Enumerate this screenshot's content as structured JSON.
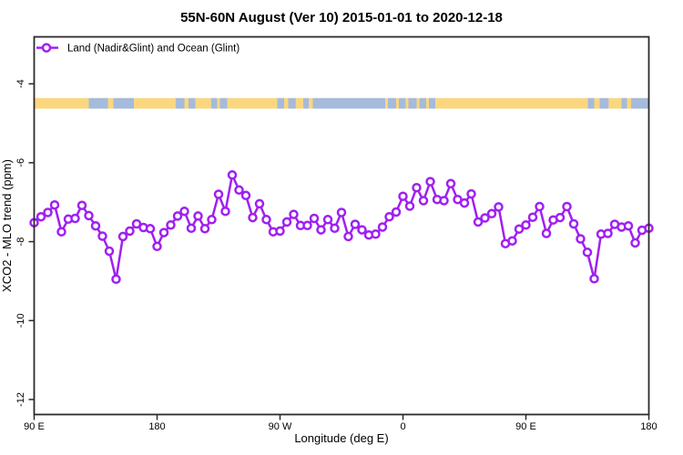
{
  "window": {
    "title": "55N-60N August (Ver 10)   2015-01-01 to 2020-12-18"
  },
  "legend": {
    "label": "Land (Nadir&Glint) and Ocean (Glint)"
  },
  "colors": {
    "series_purple": "#A020F0",
    "marker_fill": "#FFFFFF",
    "land_yellow": "#FAD77F",
    "ocean_blue": "#A6BADB",
    "axis_dark": "#2A2A2A"
  },
  "chart_data": {
    "type": "line",
    "title": "55N-60N August (Ver 10)   2015-01-01 to 2020-12-18",
    "xlabel": "Longitude (deg E)",
    "ylabel": "XCO2 - MLO trend (ppm)",
    "xlim": [
      90,
      540
    ],
    "ylim": [
      -12.38,
      -2.81
    ],
    "grid": false,
    "legend_position": "top-left-inside",
    "x_ticks": [
      {
        "value": 90,
        "label": "90 E"
      },
      {
        "value": 180,
        "label": "180"
      },
      {
        "value": 270,
        "label": "90 W"
      },
      {
        "value": 360,
        "label": "0"
      },
      {
        "value": 450,
        "label": "90 E"
      },
      {
        "value": 540,
        "label": "180"
      }
    ],
    "y_ticks": [
      {
        "value": -4,
        "label": "-4"
      },
      {
        "value": -6,
        "label": "-6"
      },
      {
        "value": -8,
        "label": "-8"
      },
      {
        "value": -10,
        "label": "-10"
      },
      {
        "value": -12,
        "label": "-12"
      }
    ],
    "series": [
      {
        "name": "Land (Nadir&Glint) and Ocean (Glint)",
        "color": "#A020F0",
        "marker": "open-circle",
        "x": [
          90,
          95,
          100,
          105,
          110,
          115,
          120,
          125,
          130,
          135,
          140,
          145,
          150,
          155,
          160,
          165,
          170,
          175,
          180,
          185,
          190,
          195,
          200,
          205,
          210,
          215,
          220,
          225,
          230,
          235,
          240,
          245,
          250,
          255,
          260,
          265,
          270,
          275,
          280,
          285,
          290,
          295,
          300,
          305,
          310,
          315,
          320,
          325,
          330,
          335,
          340,
          345,
          350,
          355,
          360,
          365,
          370,
          375,
          380,
          385,
          390,
          395,
          400,
          405,
          410,
          415,
          420,
          425,
          430,
          435,
          440,
          445,
          450,
          455,
          460,
          465,
          470,
          475,
          480,
          485,
          490,
          495,
          500,
          505,
          510,
          515,
          520,
          525,
          530,
          535,
          540
        ],
        "values": [
          -7.52,
          -7.37,
          -7.26,
          -7.07,
          -7.75,
          -7.43,
          -7.41,
          -7.08,
          -7.34,
          -7.6,
          -7.86,
          -8.24,
          -8.95,
          -7.87,
          -7.73,
          -7.55,
          -7.64,
          -7.67,
          -8.12,
          -7.77,
          -7.58,
          -7.35,
          -7.23,
          -7.66,
          -7.35,
          -7.67,
          -7.44,
          -6.8,
          -7.23,
          -6.31,
          -6.69,
          -6.83,
          -7.39,
          -7.04,
          -7.44,
          -7.75,
          -7.73,
          -7.5,
          -7.31,
          -7.59,
          -7.59,
          -7.41,
          -7.7,
          -7.44,
          -7.66,
          -7.26,
          -7.87,
          -7.56,
          -7.7,
          -7.83,
          -7.81,
          -7.63,
          -7.37,
          -7.25,
          -6.85,
          -7.1,
          -6.63,
          -6.96,
          -6.48,
          -6.93,
          -6.96,
          -6.53,
          -6.93,
          -7.02,
          -6.79,
          -7.5,
          -7.4,
          -7.29,
          -7.12,
          -8.05,
          -7.98,
          -7.68,
          -7.58,
          -7.38,
          -7.11,
          -7.79,
          -7.45,
          -7.39,
          -7.11,
          -7.55,
          -7.93,
          -8.27,
          -8.94,
          -7.81,
          -7.79,
          -7.56,
          -7.63,
          -7.6,
          -8.03,
          -7.71,
          -7.66
        ]
      }
    ],
    "map_band": {
      "description": "land/ocean strip along 55N-60N",
      "value_top": -4.36,
      "value_bottom": -4.63,
      "land_color": "#FAD77F",
      "ocean_color": "#A6BADB",
      "segments": [
        [
          90,
          130,
          "land"
        ],
        [
          130,
          144,
          "ocean"
        ],
        [
          144,
          148,
          "land"
        ],
        [
          148,
          163,
          "ocean"
        ],
        [
          163,
          193.5,
          "land"
        ],
        [
          193.5,
          200,
          "ocean"
        ],
        [
          200,
          203,
          "land"
        ],
        [
          203,
          208,
          "ocean"
        ],
        [
          208,
          219.5,
          "land"
        ],
        [
          219.5,
          224,
          "ocean"
        ],
        [
          224,
          226,
          "land"
        ],
        [
          226,
          231.5,
          "ocean"
        ],
        [
          231.5,
          268,
          "land"
        ],
        [
          268,
          273,
          "ocean"
        ],
        [
          273,
          276,
          "land"
        ],
        [
          276,
          281.6,
          "ocean"
        ],
        [
          281.6,
          287,
          "land"
        ],
        [
          287,
          291,
          "ocean"
        ],
        [
          291,
          294,
          "land"
        ],
        [
          294,
          347,
          "ocean"
        ],
        [
          347,
          349,
          "land"
        ],
        [
          349,
          355,
          "ocean"
        ],
        [
          355,
          357,
          "land"
        ],
        [
          357,
          362,
          "ocean"
        ],
        [
          362,
          364,
          "land"
        ],
        [
          364,
          370,
          "ocean"
        ],
        [
          370,
          372,
          "land"
        ],
        [
          372,
          377,
          "ocean"
        ],
        [
          377,
          379,
          "land"
        ],
        [
          379,
          383.8,
          "ocean"
        ],
        [
          383.8,
          495.3,
          "land"
        ],
        [
          495.3,
          500,
          "ocean"
        ],
        [
          500,
          504,
          "land"
        ],
        [
          504,
          510.6,
          "ocean"
        ],
        [
          510.6,
          520,
          "land"
        ],
        [
          520,
          524,
          "ocean"
        ],
        [
          524,
          527,
          "land"
        ],
        [
          527,
          540,
          "ocean"
        ]
      ]
    }
  }
}
